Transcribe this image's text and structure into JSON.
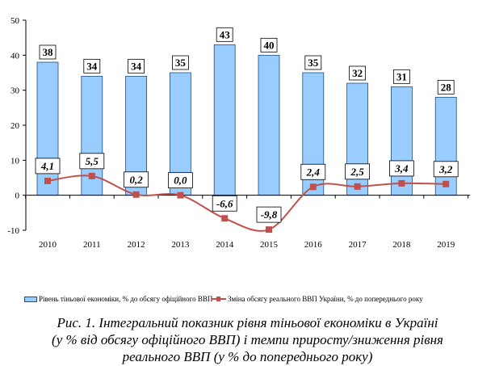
{
  "chart_data": {
    "type": "bar+line",
    "categories": [
      "2010",
      "2011",
      "2012",
      "2013",
      "2014",
      "2015",
      "2016",
      "2017",
      "2018",
      "2019"
    ],
    "series": [
      {
        "name": "Рівень тіньової економіки, % до обсягу офіційного ВВП",
        "type": "bar",
        "color": "#99CCFF",
        "values": [
          38,
          34,
          34,
          35,
          43,
          40,
          35,
          32,
          31,
          28
        ],
        "labels": [
          "38",
          "34",
          "34",
          "35",
          "43",
          "40",
          "35",
          "32",
          "31",
          "28"
        ]
      },
      {
        "name": "Зміна обсягу реального ВВП України, % до попереднього року",
        "type": "line",
        "color": "#C0504D",
        "values": [
          4.1,
          5.5,
          0.2,
          0.0,
          -6.6,
          -9.8,
          2.4,
          2.5,
          3.4,
          3.2
        ],
        "labels": [
          "4,1",
          "5,5",
          "0,2",
          "0,0",
          "-6,6",
          "-9,8",
          "2,4",
          "2,5",
          "3,4",
          "3,2"
        ]
      }
    ],
    "ylim": [
      -10,
      50
    ],
    "yticks": [
      "-10",
      "0",
      "10",
      "20",
      "30",
      "40",
      "50"
    ],
    "grid": false,
    "legend": "bottom"
  },
  "caption": {
    "line1": "Рис. 1. Інтегральний показник рівня тіньової економіки в Україні",
    "line2": "(у % від обсягу офіційного ВВП) і темпи приросту/зниження рівня",
    "line3": "реального ВВП (у % до попереднього року)"
  }
}
